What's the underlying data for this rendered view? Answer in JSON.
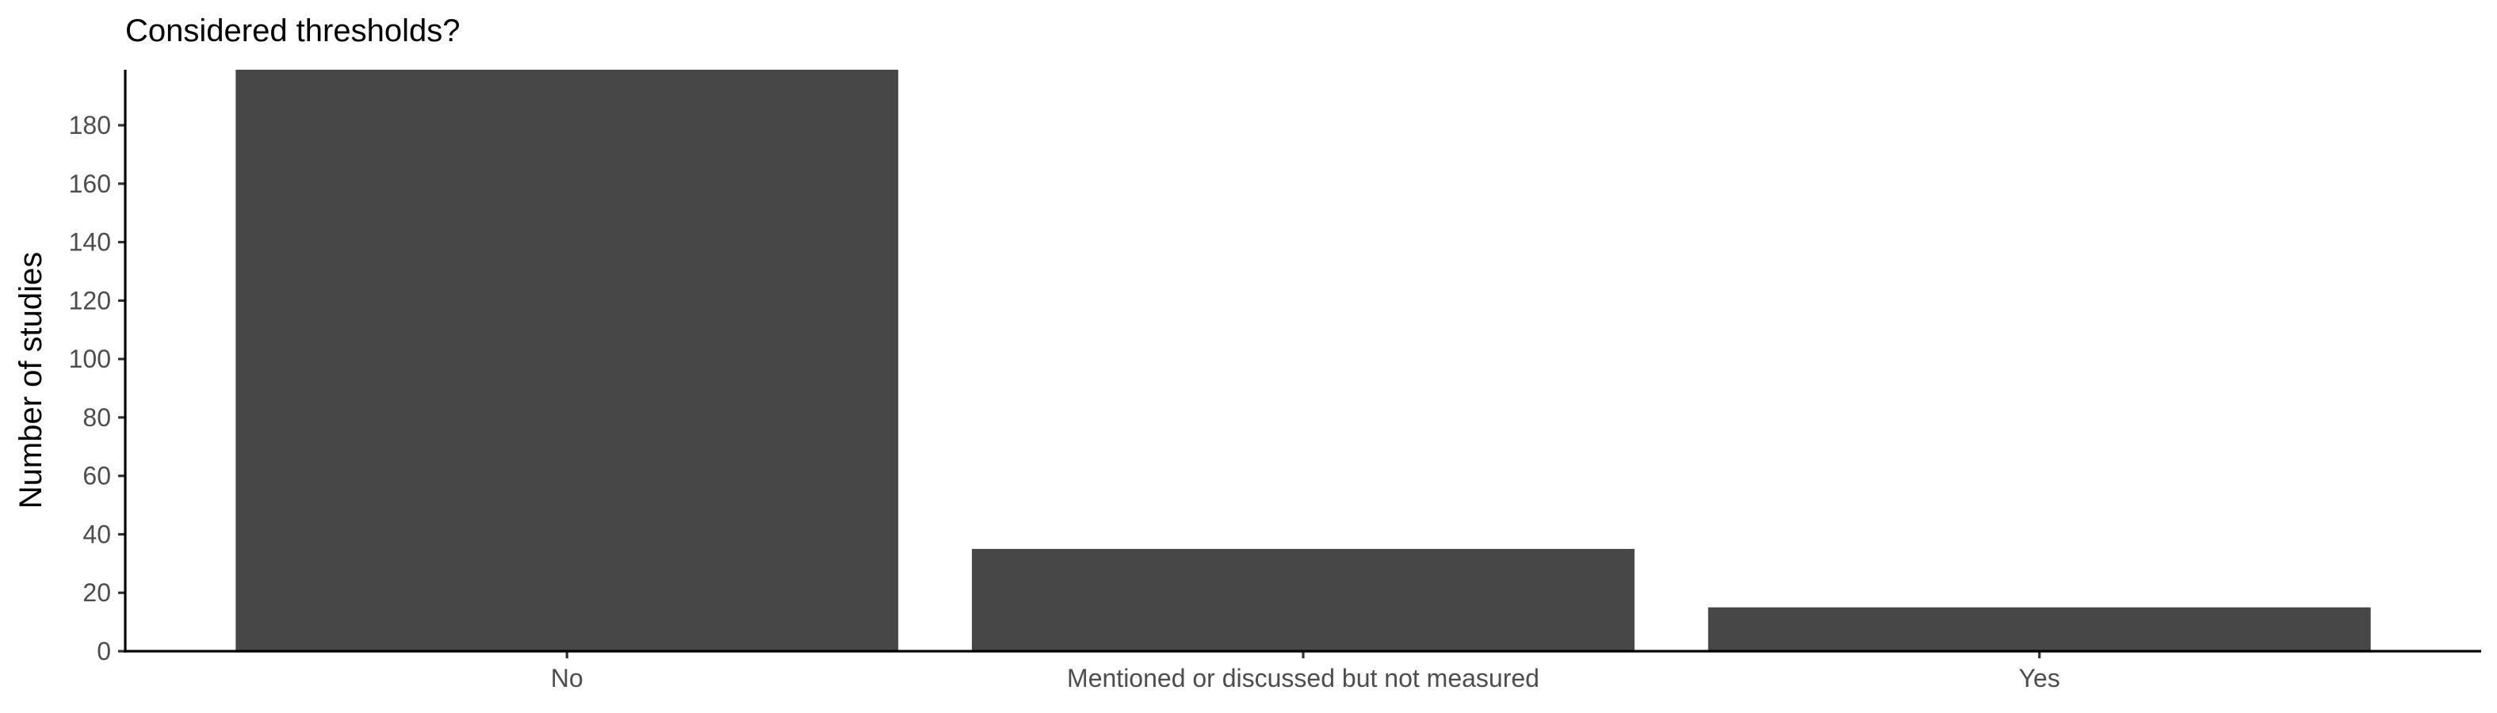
{
  "chart_data": {
    "type": "bar",
    "title": "Considered thresholds?",
    "xlabel": "",
    "ylabel": "Number of studies",
    "categories": [
      "No",
      "Mentioned or discussed but not measured",
      "Yes"
    ],
    "values": [
      199,
      35,
      15
    ],
    "ylim": [
      0,
      199
    ],
    "yticks": [
      0,
      20,
      40,
      60,
      80,
      100,
      120,
      140,
      160,
      180
    ],
    "grid": false,
    "bar_color": "#474747",
    "axis_color": "#000000",
    "tick_label_color": "#4d4d4d"
  }
}
